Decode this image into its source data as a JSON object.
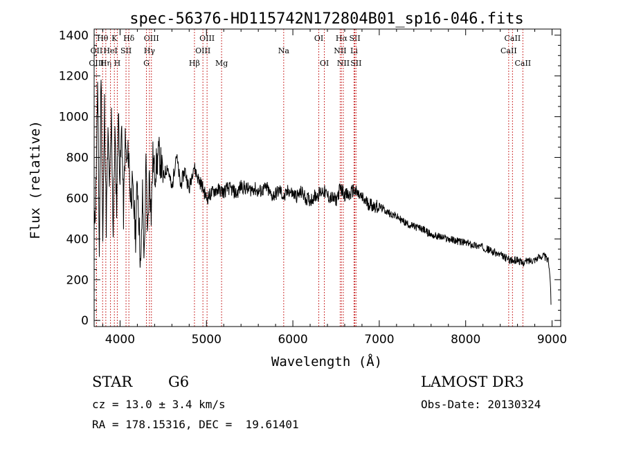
{
  "chart_data": {
    "type": "line",
    "title": "spec-56376-HD115742N172804B01_sp16-046.fits",
    "xlabel": "Wavelength (Å)",
    "ylabel": "Flux (relative)",
    "xlim": [
      3700,
      9100
    ],
    "ylim": [
      -30,
      1430
    ],
    "xticks": [
      4000,
      5000,
      6000,
      7000,
      8000,
      9000
    ],
    "yticks": [
      0,
      200,
      400,
      600,
      800,
      1000,
      1200,
      1400
    ],
    "grid": false,
    "series": [
      {
        "name": "flux",
        "x": [
          3700,
          3720,
          3740,
          3760,
          3780,
          3800,
          3820,
          3840,
          3860,
          3880,
          3900,
          3920,
          3940,
          3960,
          3980,
          4000,
          4020,
          4040,
          4060,
          4080,
          4100,
          4120,
          4140,
          4160,
          4180,
          4200,
          4220,
          4240,
          4260,
          4280,
          4300,
          4320,
          4340,
          4360,
          4380,
          4400,
          4450,
          4500,
          4550,
          4600,
          4650,
          4700,
          4750,
          4800,
          4850,
          4900,
          4950,
          5000,
          5050,
          5100,
          5150,
          5200,
          5250,
          5300,
          5350,
          5400,
          5450,
          5500,
          5550,
          5600,
          5650,
          5700,
          5750,
          5800,
          5850,
          5900,
          5950,
          6000,
          6050,
          6100,
          6150,
          6200,
          6250,
          6300,
          6350,
          6400,
          6450,
          6500,
          6550,
          6600,
          6650,
          6700,
          6750,
          6800,
          6850,
          6900,
          6950,
          7000,
          7100,
          7200,
          7300,
          7400,
          7500,
          7600,
          7700,
          7800,
          7900,
          8000,
          8100,
          8200,
          8300,
          8400,
          8500,
          8550,
          8600,
          8650,
          8700,
          8800,
          8900,
          8960,
          8980,
          8990
        ],
        "y": [
          420,
          650,
          1150,
          320,
          1250,
          380,
          1050,
          480,
          900,
          640,
          1000,
          430,
          920,
          560,
          1020,
          700,
          960,
          520,
          880,
          760,
          840,
          600,
          650,
          560,
          420,
          700,
          480,
          240,
          620,
          300,
          760,
          420,
          740,
          520,
          800,
          720,
          820,
          700,
          760,
          640,
          820,
          660,
          740,
          640,
          760,
          700,
          660,
          600,
          620,
          640,
          640,
          630,
          650,
          640,
          620,
          660,
          650,
          640,
          650,
          630,
          640,
          650,
          610,
          620,
          640,
          600,
          640,
          620,
          610,
          630,
          600,
          590,
          610,
          620,
          640,
          610,
          600,
          590,
          650,
          620,
          610,
          640,
          620,
          600,
          580,
          570,
          560,
          560,
          530,
          510,
          480,
          460,
          450,
          420,
          410,
          400,
          390,
          380,
          370,
          360,
          340,
          320,
          300,
          290,
          300,
          280,
          290,
          300,
          320,
          290,
          200,
          40
        ]
      }
    ],
    "lines": [
      {
        "name": "Hθ",
        "x": 3798,
        "row": 0
      },
      {
        "name": "OII",
        "x": 3727,
        "row": 1
      },
      {
        "name": "OIII",
        "x": 3727,
        "row": 2
      },
      {
        "name": "Hη",
        "x": 3835,
        "row": 2
      },
      {
        "name": "HeI",
        "x": 3889,
        "row": 1
      },
      {
        "name": "K",
        "x": 3934,
        "row": 0
      },
      {
        "name": "H",
        "x": 3968,
        "row": 2
      },
      {
        "name": "SII",
        "x": 4069,
        "row": 1
      },
      {
        "name": "Hδ",
        "x": 4102,
        "row": 0
      },
      {
        "name": "OIII",
        "x": 4363,
        "row": 0
      },
      {
        "name": "Hγ",
        "x": 4340,
        "row": 1
      },
      {
        "name": "G",
        "x": 4305,
        "row": 2
      },
      {
        "name": "Hβ",
        "x": 4861,
        "row": 2
      },
      {
        "name": "OIII",
        "x": 5007,
        "row": 0
      },
      {
        "name": "OIII",
        "x": 4959,
        "row": 1
      },
      {
        "name": "Mg",
        "x": 5175,
        "row": 2
      },
      {
        "name": "Na",
        "x": 5894,
        "row": 1
      },
      {
        "name": "OI",
        "x": 6300,
        "row": 0
      },
      {
        "name": "OI",
        "x": 6364,
        "row": 2
      },
      {
        "name": "Hα",
        "x": 6563,
        "row": 0
      },
      {
        "name": "NII",
        "x": 6548,
        "row": 1
      },
      {
        "name": "NII",
        "x": 6584,
        "row": 2
      },
      {
        "name": "SII",
        "x": 6717,
        "row": 0
      },
      {
        "name": "Li",
        "x": 6708,
        "row": 1
      },
      {
        "name": "SII",
        "x": 6731,
        "row": 2
      },
      {
        "name": "CaII",
        "x": 8542,
        "row": 0
      },
      {
        "name": "CaII",
        "x": 8498,
        "row": 1
      },
      {
        "name": "CaII",
        "x": 8662,
        "row": 2
      }
    ]
  },
  "info": {
    "class": "STAR",
    "subclass": "G6",
    "survey": "LAMOST DR3",
    "cz": "cz = 13.0 ± 3.4 km/s",
    "obs_date": "Obs-Date: 20130324",
    "radec": "RA = 178.15316, DEC =  19.61401"
  },
  "colors": {
    "axis": "#000000",
    "line": "#000000",
    "marker": "#cc3333"
  }
}
